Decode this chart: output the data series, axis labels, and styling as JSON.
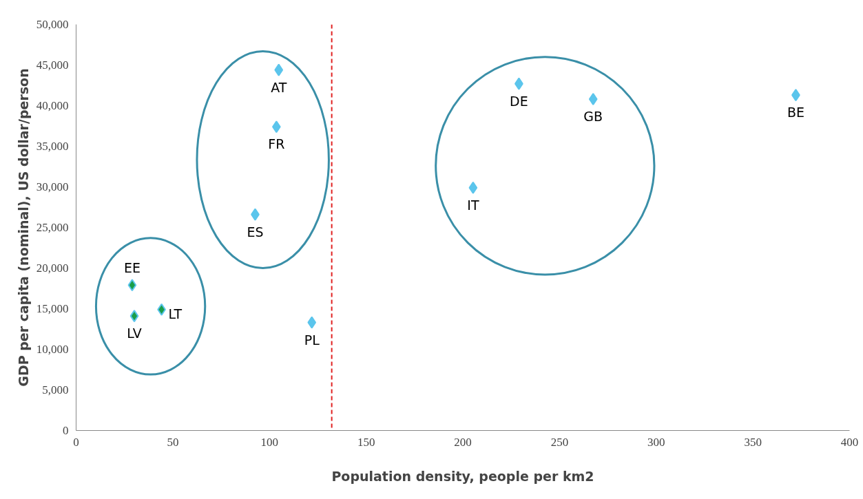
{
  "chart_data": {
    "type": "scatter",
    "xlabel": "Population density, people per km2",
    "ylabel": "GDP per capita (nominal), US dollar/person",
    "x": [
      104.8,
      103.6,
      92.6,
      29,
      30.1,
      44.2,
      121.9,
      205.3,
      229,
      267.4,
      372.2
    ],
    "values": [
      44400,
      37400,
      26600,
      17900,
      14100,
      14900,
      13300,
      29900,
      42700,
      40800,
      41300
    ],
    "colors": [
      "#5bc5ec",
      "#5bc5ec",
      "#5bc5ec",
      "#1a9e4a",
      "#1a9e4a",
      "#1a9e4a",
      "#5bc5ec",
      "#5bc5ec",
      "#5bc5ec",
      "#5bc5ec",
      "#5bc5ec"
    ],
    "marker": "diamond",
    "grid": false,
    "xlim": [
      0,
      400
    ],
    "xticks": [
      0,
      50,
      100,
      150,
      200,
      250,
      300,
      350,
      400
    ],
    "ylim": [
      0,
      50000
    ],
    "yticks": [
      {
        "value": 0,
        "label": "0"
      },
      {
        "value": 5000,
        "label": "5,000"
      },
      {
        "value": 10000,
        "label": "10,000"
      },
      {
        "value": 15000,
        "label": "15,000"
      },
      {
        "value": 20000,
        "label": "20,000"
      },
      {
        "value": 25000,
        "label": "25,000"
      },
      {
        "value": 30000,
        "label": "30,000"
      },
      {
        "value": 35000,
        "label": "35,000"
      },
      {
        "value": 40000,
        "label": "40,000"
      },
      {
        "value": 45000,
        "label": "45,000"
      },
      {
        "value": 50000,
        "label": "50,000"
      }
    ],
    "ref_lines": [
      {
        "axis": "x",
        "value": 132.2,
        "color": "#e02020",
        "line_style": "dashed"
      }
    ],
    "annotations": [
      {
        "text": "AT",
        "x": 104.8,
        "y": 44400
      },
      {
        "text": "FR",
        "x": 103.6,
        "y": 37400
      },
      {
        "text": "ES",
        "x": 92.6,
        "y": 26600
      },
      {
        "text": "EE",
        "x": 29,
        "y": 17900
      },
      {
        "text": "LV",
        "x": 30.1,
        "y": 14100
      },
      {
        "text": "LT",
        "x": 44.2,
        "y": 14900
      },
      {
        "text": "PL",
        "x": 121.9,
        "y": 13300
      },
      {
        "text": "IT",
        "x": 205.3,
        "y": 29900
      },
      {
        "text": "DE",
        "x": 229,
        "y": 42700
      },
      {
        "text": "GB",
        "x": 267.4,
        "y": 40800
      },
      {
        "text": "BE",
        "x": 372.2,
        "y": 41300
      }
    ]
  }
}
